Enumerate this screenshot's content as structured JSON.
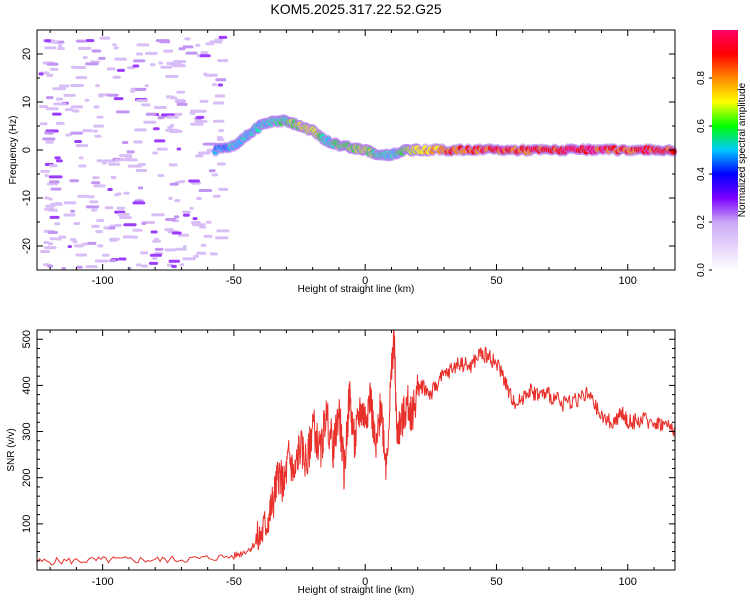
{
  "title": "KOM5.2025.317.22.52.G25",
  "chart_data": [
    {
      "type": "heatmap",
      "xlabel": "Height of straight line (km)",
      "ylabel": "Frequency (Hz)",
      "xlim": [
        -125,
        118
      ],
      "ylim": [
        -25,
        25
      ],
      "xticks": [
        -100,
        -50,
        0,
        50,
        100
      ],
      "yticks": [
        -20,
        -10,
        0,
        10,
        20
      ],
      "colorbar": {
        "label": "Normalized spectral amplitude",
        "range": [
          0,
          1
        ],
        "ticks": [
          0.0,
          0.2,
          0.4,
          0.6,
          0.8
        ],
        "colors": [
          "#ffffff",
          "#c9a6f5",
          "#7b00ff",
          "#0000ff",
          "#00c8ff",
          "#00ff00",
          "#ffff00",
          "#ff8800",
          "#ff0000",
          "#ff0066"
        ]
      },
      "ridge": {
        "x": [
          -57,
          -50,
          -45,
          -40,
          -35,
          -30,
          -25,
          -20,
          -15,
          -10,
          -5,
          0,
          5,
          10,
          15,
          20,
          30,
          40,
          50,
          60,
          70,
          80,
          90,
          100,
          110,
          118
        ],
        "y": [
          0,
          1,
          3,
          5,
          6,
          6,
          5,
          4,
          2,
          1,
          0.5,
          0,
          -1,
          -1,
          0,
          0,
          0,
          0,
          0,
          0,
          0,
          0,
          0,
          0,
          0,
          0
        ],
        "amplitude": [
          0.25,
          0.3,
          0.35,
          0.35,
          0.4,
          0.45,
          0.6,
          0.7,
          0.35,
          0.5,
          0.55,
          0.6,
          0.4,
          0.35,
          0.5,
          0.7,
          0.8,
          0.85,
          0.9,
          0.88,
          0.9,
          0.92,
          0.9,
          0.85,
          0.9,
          0.88
        ]
      },
      "noise_region_x": [
        -125,
        -55
      ]
    },
    {
      "type": "line",
      "xlabel": "Height of straight line (km)",
      "ylabel": "SNR (v/v)",
      "xlim": [
        -125,
        118
      ],
      "ylim": [
        0,
        520
      ],
      "xticks": [
        -100,
        -50,
        0,
        50,
        100
      ],
      "yticks": [
        100,
        200,
        300,
        400,
        500
      ],
      "series": [
        {
          "name": "SNR",
          "color": "#e8302b",
          "x": [
            -125,
            -110,
            -95,
            -80,
            -65,
            -50,
            -44,
            -40,
            -37,
            -35,
            -33,
            -31,
            -29,
            -27,
            -25,
            -22,
            -20,
            -17,
            -15,
            -12,
            -10,
            -8,
            -6,
            -4,
            -2,
            0,
            2,
            4,
            6,
            8,
            10,
            11,
            12,
            14,
            16,
            18,
            20,
            22,
            25,
            28,
            32,
            36,
            40,
            44,
            48,
            52,
            55,
            58,
            62,
            66,
            70,
            75,
            80,
            85,
            90,
            95,
            98,
            100,
            105,
            110,
            114,
            118
          ],
          "y": [
            18,
            20,
            22,
            22,
            24,
            30,
            45,
            70,
            110,
            150,
            210,
            180,
            250,
            200,
            270,
            230,
            320,
            250,
            340,
            260,
            350,
            210,
            380,
            270,
            350,
            330,
            380,
            250,
            360,
            230,
            420,
            515,
            300,
            320,
            360,
            340,
            390,
            400,
            380,
            410,
            430,
            450,
            440,
            470,
            460,
            430,
            380,
            360,
            390,
            380,
            380,
            360,
            370,
            380,
            330,
            320,
            340,
            320,
            325,
            320,
            315,
            305
          ]
        }
      ]
    }
  ]
}
